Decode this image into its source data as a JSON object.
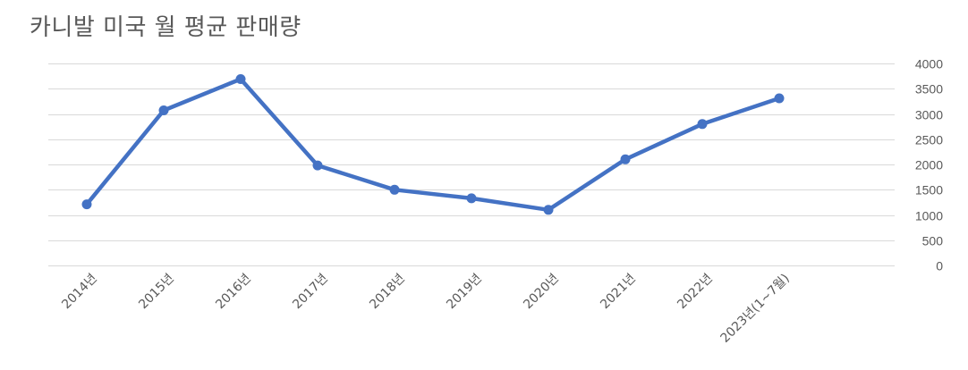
{
  "chart_data": {
    "type": "line",
    "title": "카니발 미국 월 평균 판매량",
    "categories": [
      "2014년",
      "2015년",
      "2016년",
      "2017년",
      "2018년",
      "2019년",
      "2020년",
      "2021년",
      "2022년",
      "2023년(1~7월)"
    ],
    "series": [
      {
        "values": [
          1210,
          3070,
          3690,
          1980,
          1500,
          1330,
          1100,
          2100,
          2800,
          3310
        ],
        "color": "#4472C4"
      }
    ],
    "xlabel": "",
    "ylabel": "",
    "ylim": [
      0,
      4000
    ],
    "yticks": [
      0,
      500,
      1000,
      1500,
      2000,
      2500,
      3000,
      3500,
      4000
    ],
    "y_axis_position": "right",
    "grid": true,
    "gridline_color": "#d9d9d9"
  }
}
